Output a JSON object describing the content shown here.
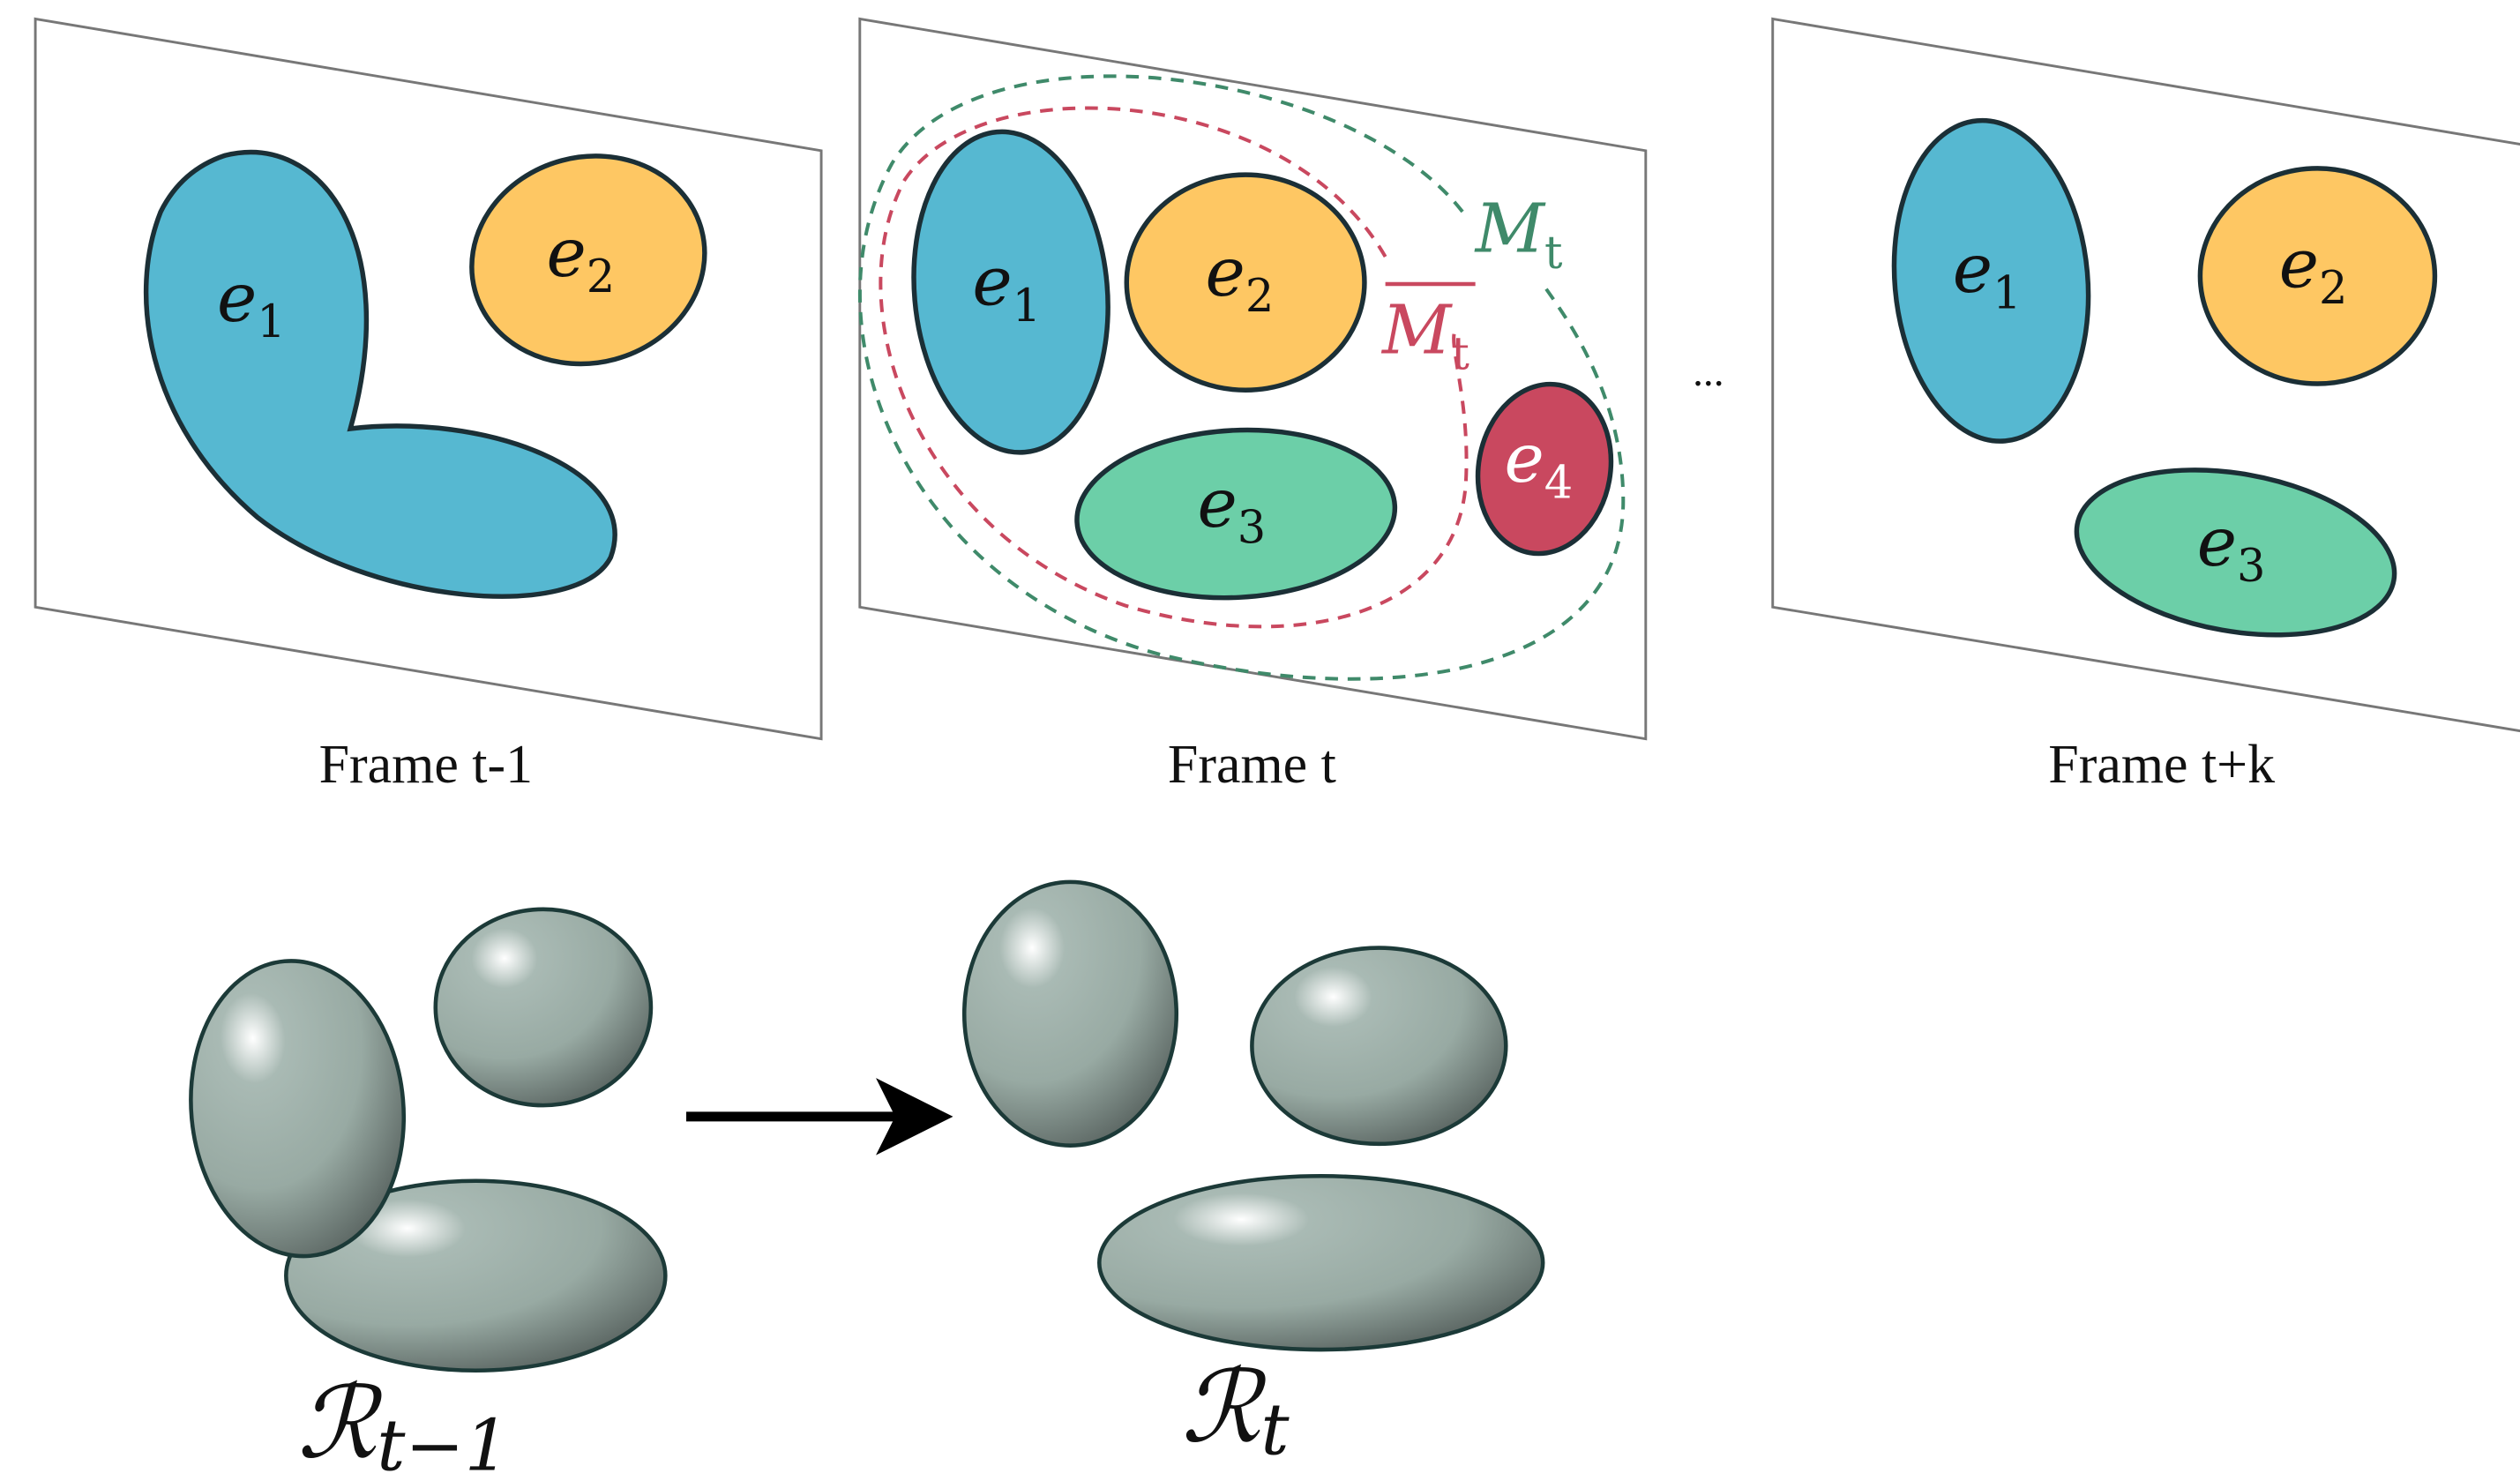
{
  "frames": [
    {
      "caption": "Frame t-1",
      "entities": [
        {
          "label": "e",
          "sub": "1"
        },
        {
          "label": "e",
          "sub": "2"
        }
      ]
    },
    {
      "caption": "Frame t",
      "entities": [
        {
          "label": "e",
          "sub": "1"
        },
        {
          "label": "e",
          "sub": "2"
        },
        {
          "label": "e",
          "sub": "3"
        },
        {
          "label": "e",
          "sub": "4"
        }
      ],
      "masks": [
        {
          "label": "M",
          "sub": "t"
        },
        {
          "label": "M",
          "sub": "t"
        }
      ]
    },
    {
      "caption": "Frame t+k",
      "entities": [
        {
          "label": "e",
          "sub": "1"
        },
        {
          "label": "e",
          "sub": "2"
        },
        {
          "label": "e",
          "sub": "3"
        }
      ]
    }
  ],
  "ellipsis": "...",
  "representations": [
    {
      "label": "ℛ",
      "sub": "t−1"
    },
    {
      "label": "ℛ",
      "sub": "t"
    }
  ]
}
